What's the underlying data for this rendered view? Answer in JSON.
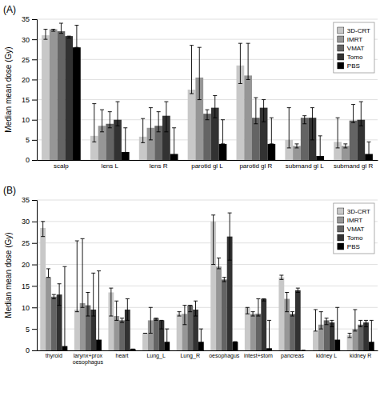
{
  "chart_data": [
    {
      "type": "bar",
      "title": "(A)",
      "categories": [
        "scalp",
        "lens L",
        "lens R",
        "parotid gl L",
        "parotid gl R",
        "submand gl L",
        "submand gl R"
      ],
      "series": [
        {
          "name": "3D-CRT",
          "color": "#c8c8c8",
          "values": [
            31.0,
            6.0,
            5.8,
            17.5,
            23.5,
            5.0,
            4.5
          ],
          "err_lo": [
            1.0,
            1.5,
            1.5,
            1.0,
            4.5,
            2.0,
            1.5
          ],
          "err_hi": [
            1.5,
            8.0,
            4.5,
            11.0,
            5.5,
            8.0,
            6.0
          ]
        },
        {
          "name": "IMRT",
          "color": "#969696",
          "values": [
            32.5,
            8.5,
            8.0,
            20.5,
            21.0,
            3.5,
            3.5
          ],
          "err_lo": [
            0.5,
            1.5,
            3.0,
            5.5,
            1.0,
            0.5,
            0.5
          ],
          "err_hi": [
            0.0,
            4.0,
            5.0,
            7.5,
            8.0,
            0.5,
            0.5
          ]
        },
        {
          "name": "VMAT",
          "color": "#646464",
          "values": [
            32.0,
            9.0,
            8.5,
            11.5,
            10.5,
            10.5,
            9.8
          ],
          "err_lo": [
            0.5,
            1.0,
            1.5,
            1.5,
            1.5,
            1.5,
            0.5
          ],
          "err_hi": [
            2.0,
            3.0,
            3.5,
            1.0,
            5.0,
            0.5,
            4.0
          ]
        },
        {
          "name": "Tomo",
          "color": "#323232",
          "values": [
            30.8,
            10.0,
            11.0,
            13.0,
            13.0,
            10.5,
            10.0
          ],
          "err_lo": [
            0.5,
            1.5,
            4.0,
            2.5,
            3.5,
            5.5,
            1.5
          ],
          "err_hi": [
            0.0,
            4.5,
            3.5,
            3.0,
            2.0,
            2.5,
            4.5
          ]
        },
        {
          "name": "PBS",
          "color": "#000000",
          "values": [
            28.0,
            2.0,
            1.5,
            4.0,
            4.0,
            1.0,
            1.5
          ],
          "err_lo": [
            0.0,
            1.5,
            1.0,
            0.0,
            0.0,
            0.5,
            0.5
          ],
          "err_hi": [
            5.5,
            6.0,
            6.5,
            6.0,
            6.5,
            5.0,
            3.0
          ]
        }
      ],
      "y_label": "Median mean dose (Gy)",
      "ylim": [
        0,
        35
      ],
      "yticks": [
        0,
        5,
        10,
        15,
        20,
        25,
        30,
        35
      ],
      "grid": true,
      "legend": "upper right"
    },
    {
      "type": "bar",
      "title": "(B)",
      "categories": [
        "thyroid",
        "larynx+prox\noesophagus",
        "heart",
        "Lung_L",
        "Lung_R",
        "oesophagus",
        "intest+stom",
        "pancreas",
        "kidney L",
        "kidney R"
      ],
      "series": [
        {
          "name": "3D-CRT",
          "color": "#c8c8c8",
          "values": [
            28.5,
            9.5,
            13.5,
            4.0,
            8.5,
            30.0,
            10.0,
            17.0,
            4.5,
            3.5
          ],
          "err_lo": [
            2.0,
            0.5,
            5.5,
            0.0,
            0.5,
            10.0,
            1.5,
            0.5,
            0.0,
            0.5
          ],
          "err_hi": [
            1.5,
            16.0,
            1.0,
            0.0,
            0.5,
            1.5,
            0.0,
            0.5,
            5.0,
            0.5
          ]
        },
        {
          "name": "IMRT",
          "color": "#969696",
          "values": [
            17.0,
            11.0,
            8.0,
            7.0,
            8.5,
            19.5,
            8.5,
            12.0,
            6.0,
            5.0
          ],
          "err_lo": [
            0.0,
            1.0,
            1.0,
            3.0,
            2.5,
            0.5,
            0.5,
            3.0,
            1.0,
            0.5
          ],
          "err_hi": [
            2.0,
            15.0,
            3.5,
            3.0,
            2.0,
            2.0,
            0.5,
            1.5,
            3.0,
            4.5
          ]
        },
        {
          "name": "VMAT",
          "color": "#646464",
          "values": [
            12.5,
            10.5,
            7.0,
            7.5,
            10.5,
            16.5,
            8.5,
            8.5,
            7.0,
            6.0
          ],
          "err_lo": [
            0.5,
            2.5,
            0.5,
            0.5,
            1.5,
            0.5,
            0.5,
            0.5,
            1.0,
            0.5
          ],
          "err_hi": [
            0.5,
            3.0,
            0.5,
            0.0,
            0.0,
            0.5,
            3.5,
            0.5,
            0.5,
            1.0
          ]
        },
        {
          "name": "Tomo",
          "color": "#323232",
          "values": [
            13.0,
            9.5,
            9.5,
            7.0,
            9.5,
            26.5,
            12.0,
            14.0,
            6.5,
            6.5
          ],
          "err_lo": [
            2.5,
            1.5,
            2.5,
            2.0,
            1.5,
            5.5,
            0.5,
            0.5,
            1.0,
            1.0
          ],
          "err_hi": [
            2.5,
            8.5,
            2.5,
            0.0,
            2.0,
            5.5,
            0.0,
            0.5,
            0.5,
            0.5
          ]
        },
        {
          "name": "PBS",
          "color": "#000000",
          "values": [
            1.0,
            2.5,
            0.3,
            2.0,
            2.0,
            2.0,
            0.5,
            0.0,
            2.5,
            2.0
          ],
          "err_lo": [
            0.5,
            2.0,
            0.0,
            1.5,
            1.5,
            0.0,
            0.3,
            0.0,
            2.0,
            1.5
          ],
          "err_hi": [
            18.5,
            16.0,
            0.0,
            3.0,
            3.0,
            0.0,
            6.5,
            0.0,
            7.5,
            5.0
          ]
        }
      ],
      "y_label": "Median mean dose (Gy)",
      "ylim": [
        0,
        35
      ],
      "yticks": [
        0,
        5,
        10,
        15,
        20,
        25,
        30,
        35
      ],
      "grid": true,
      "legend": "upper right"
    }
  ]
}
